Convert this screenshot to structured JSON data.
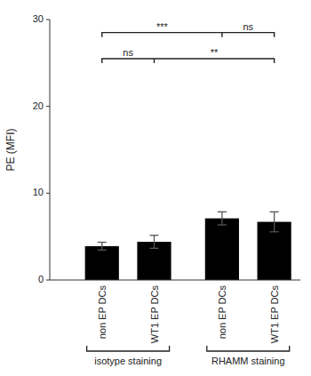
{
  "chart_data": {
    "type": "bar",
    "categories": [
      "non EP DCs",
      "WT1 EP DCs",
      "non EP DCs",
      "WT1 EP DCs"
    ],
    "values": [
      3.9,
      4.4,
      7.1,
      6.7
    ],
    "errors": [
      0.45,
      0.75,
      0.75,
      1.15
    ],
    "color": "#000000",
    "ylabel": "PE (MFI)",
    "ylim": [
      0,
      30
    ],
    "yticks": [
      0,
      10,
      20,
      30
    ],
    "grid": false,
    "groups": [
      {
        "label": "isotype staining",
        "from": 0,
        "to": 1
      },
      {
        "label": "RHAMM staining",
        "from": 2,
        "to": 3
      }
    ],
    "significance_brackets": [
      {
        "from": 0,
        "mid": 2,
        "to": 3,
        "y": 28.5,
        "labels": [
          "***",
          "ns"
        ]
      },
      {
        "from": 0,
        "mid": 1,
        "to": 3,
        "y": 25.5,
        "labels": [
          "ns",
          "**"
        ]
      }
    ]
  }
}
